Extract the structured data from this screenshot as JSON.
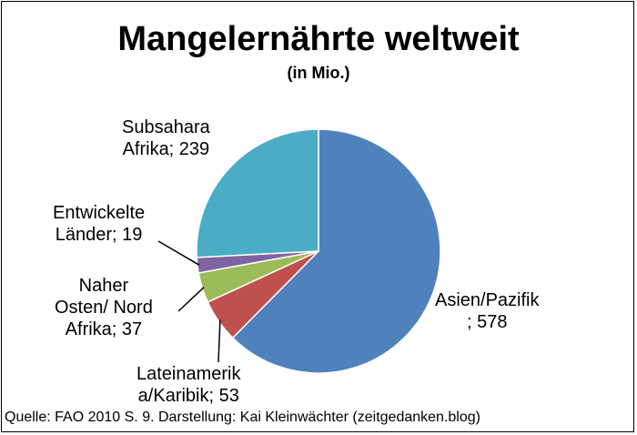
{
  "chart_data": {
    "type": "pie",
    "title": "Mangelernährte weltweit",
    "subtitle": "(in Mio.)",
    "slices": [
      {
        "name": "Asien/Pazifik",
        "value": 578,
        "color": "#4f81bd",
        "label_lines": [
          "Asien/Pazifik",
          "; 578"
        ]
      },
      {
        "name": "Lateinamerika/Karibik",
        "value": 53,
        "color": "#c0504d",
        "label_lines": [
          "Lateinamerik",
          "a/Karibik; 53"
        ]
      },
      {
        "name": "Naher Osten/ Nord Afrika",
        "value": 37,
        "color": "#9bbb59",
        "label_lines": [
          "Naher",
          "Osten/ Nord",
          "Afrika; 37"
        ]
      },
      {
        "name": "Entwickelte Länder",
        "value": 19,
        "color": "#8064a2",
        "label_lines": [
          "Entwickelte",
          "Länder; 19"
        ]
      },
      {
        "name": "Subsahara Afrika",
        "value": 239,
        "color": "#4bacc6",
        "label_lines": [
          "Subsahara",
          "Afrika; 239"
        ]
      }
    ],
    "start": "12 o'clock",
    "direction": "clockwise"
  },
  "source": "Quelle: FAO 2010 S. 9. Darstellung: Kai Kleinwächter (zeitgedanken.blog)"
}
